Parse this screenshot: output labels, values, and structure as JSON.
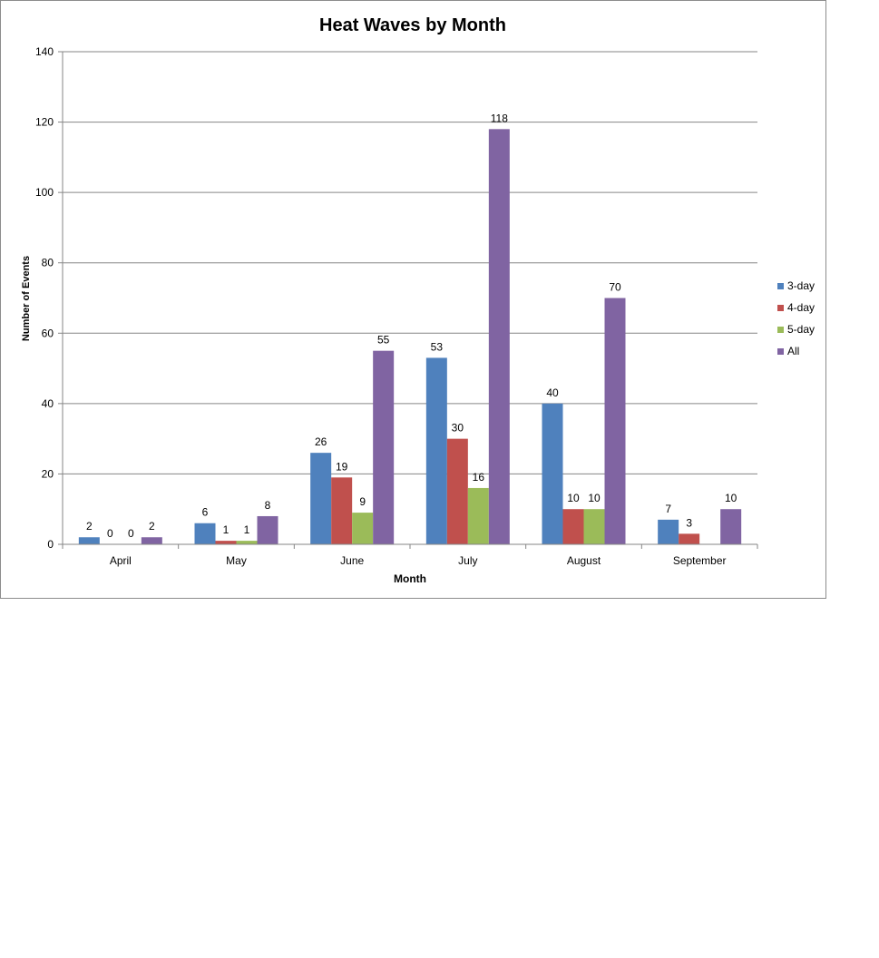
{
  "chart_data": {
    "type": "bar",
    "title": "Heat Waves by Month",
    "xlabel": "Month",
    "ylabel": "Number of Events",
    "categories": [
      "April",
      "May",
      "June",
      "July",
      "August",
      "September"
    ],
    "ylim": [
      0,
      140
    ],
    "yticks": [
      0,
      20,
      40,
      60,
      80,
      100,
      120,
      140
    ],
    "grid": true,
    "legend_position": "right",
    "series": [
      {
        "name": "3-day",
        "color": "#4F81BD",
        "values": [
          2,
          6,
          26,
          53,
          40,
          7
        ],
        "labels": [
          "2",
          "6",
          "26",
          "53",
          "40",
          "7"
        ]
      },
      {
        "name": "4-day",
        "color": "#C0504D",
        "values": [
          0,
          1,
          19,
          30,
          10,
          3
        ],
        "labels": [
          "0",
          "1",
          "19",
          "30",
          "10",
          "3"
        ]
      },
      {
        "name": "5-day",
        "color": "#9BBB59",
        "values": [
          0,
          1,
          9,
          16,
          10,
          0
        ],
        "labels": [
          "0",
          "1",
          "9",
          "16",
          "10",
          ""
        ]
      },
      {
        "name": "All",
        "color": "#8064A2",
        "values": [
          2,
          8,
          55,
          118,
          70,
          10
        ],
        "labels": [
          "2",
          "8",
          "55",
          "118",
          "70",
          "10"
        ]
      }
    ]
  }
}
